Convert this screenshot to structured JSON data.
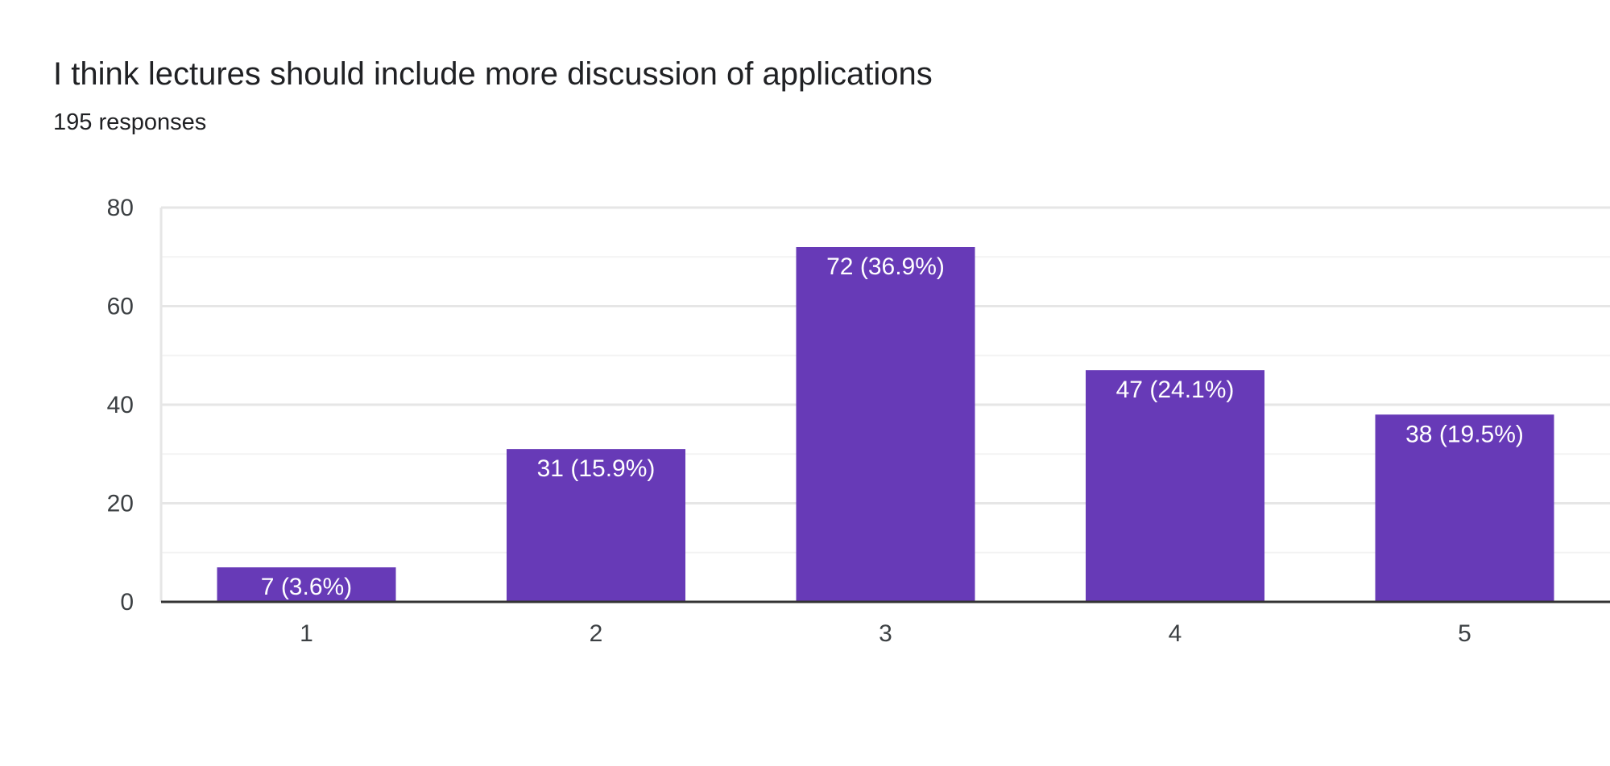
{
  "header": {
    "title": "I think lectures should include more discussion of applications",
    "subtitle": "195 responses"
  },
  "colors": {
    "bar": "#673ab7",
    "grid_major": "#e6e6e6",
    "grid_minor": "#f3f3f3",
    "axis": "#333333"
  },
  "chart_data": {
    "type": "bar",
    "title": "I think lectures should include more discussion of applications",
    "subtitle": "195 responses",
    "categories": [
      "1",
      "2",
      "3",
      "4",
      "5"
    ],
    "values": [
      7,
      31,
      72,
      47,
      38
    ],
    "data_labels": [
      "7 (3.6%)",
      "31 (15.9%)",
      "72 (36.9%)",
      "47 (24.1%)",
      "38 (19.5%)"
    ],
    "xlabel": "",
    "ylabel": "",
    "ylim": [
      0,
      80
    ],
    "yticks": [
      0,
      20,
      40,
      60,
      80
    ],
    "grid": true,
    "legend": "none"
  }
}
